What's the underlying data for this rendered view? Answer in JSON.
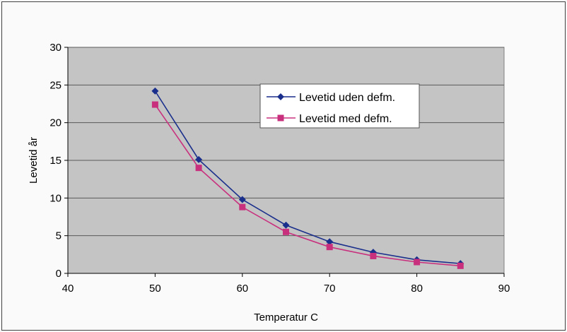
{
  "chart_data": {
    "type": "line",
    "title": "",
    "xlabel": "Temperatur C",
    "ylabel": "Levetid år",
    "xlim": [
      40,
      90
    ],
    "ylim": [
      0,
      30
    ],
    "xticks": [
      40,
      50,
      60,
      70,
      80,
      90
    ],
    "yticks": [
      0,
      5,
      10,
      15,
      20,
      25,
      30
    ],
    "grid": true,
    "legend_position": "top-right",
    "x": [
      50,
      55,
      60,
      65,
      70,
      75,
      80,
      85
    ],
    "series": [
      {
        "name": "Levetid uden defm.",
        "color": "#1a2f8c",
        "marker": "diamond",
        "values": [
          24.2,
          15.1,
          9.8,
          6.4,
          4.2,
          2.8,
          1.8,
          1.3
        ]
      },
      {
        "name": "Levetid med defm.",
        "color": "#c8307e",
        "marker": "square",
        "values": [
          22.4,
          14.0,
          8.8,
          5.5,
          3.5,
          2.3,
          1.5,
          1.0
        ]
      }
    ],
    "plot_background": "#c4c4c4"
  }
}
